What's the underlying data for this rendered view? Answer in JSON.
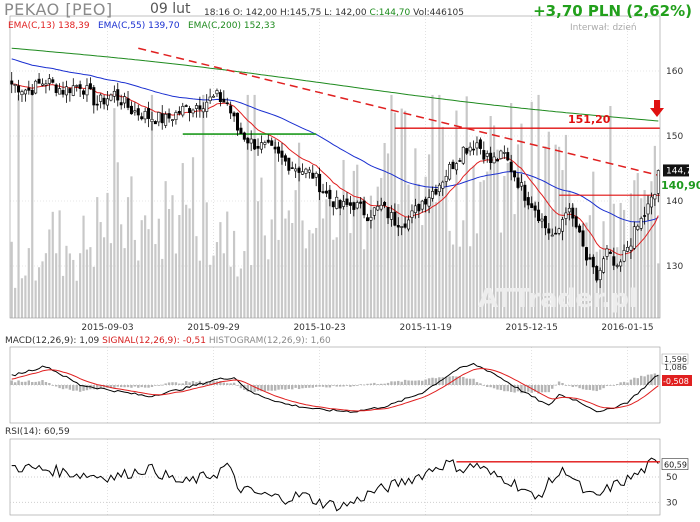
{
  "header": {
    "symbol": "PEKAO [PEO]",
    "date": "09 lut",
    "time": "18:16",
    "open": "O: 142,00",
    "high": "H:145,75",
    "low": "L: 142,00",
    "close": "C:144,70",
    "volume": "Vol:446105",
    "change": "+3,70 PLN (2,62%)",
    "interval": "Interwał: dzień"
  },
  "colors": {
    "ema13": "#e02020",
    "ema55": "#1a2fd0",
    "ema200": "#1e8a1e",
    "hline_red": "#e01010",
    "hline_green": "#1e9a1e",
    "trend": "#e02020",
    "up": "#ffffff",
    "down": "#000000",
    "volume": "#c8c8c8",
    "macd": "#000000",
    "signal": "#e02020",
    "histogram": "#b4b4b4",
    "positive_change": "#22a01c"
  },
  "chart_data": [
    {
      "type": "candlestick",
      "ylim": [
        122,
        166
      ],
      "y_ticks": [
        130,
        140,
        150,
        160
      ],
      "x_ticks": [
        "2015-09-03",
        "2015-09-29",
        "2015-10-23",
        "2015-11-19",
        "2015-12-15",
        "2016-01-15"
      ],
      "grid": true,
      "indicators": [
        {
          "name": "EMA(C,13)",
          "value": "138,39"
        },
        {
          "name": "EMA(C,55)",
          "value": "139,70"
        },
        {
          "name": "EMA(C,200)",
          "value": "152,33"
        }
      ],
      "horizontal_lines": [
        {
          "value": 151.2,
          "label": "151,20"
        },
        {
          "value": 140.9,
          "label": "140,90"
        }
      ],
      "last_price": "144,7",
      "support_line_value": 150.3,
      "trendline_value_range": [
        163.5,
        143.9
      ],
      "close_anchors": [
        [
          0,
          158
        ],
        [
          5,
          157
        ],
        [
          10,
          158.5
        ],
        [
          15,
          157
        ],
        [
          20,
          158
        ],
        [
          25,
          155
        ],
        [
          30,
          156.5
        ],
        [
          35,
          154
        ],
        [
          40,
          153
        ],
        [
          45,
          152.5
        ],
        [
          50,
          154
        ],
        [
          55,
          155
        ],
        [
          60,
          156
        ],
        [
          63,
          155
        ],
        [
          66,
          151
        ],
        [
          70,
          149
        ],
        [
          75,
          148
        ],
        [
          80,
          146
        ],
        [
          84,
          145
        ],
        [
          88,
          144
        ],
        [
          92,
          141
        ],
        [
          96,
          139
        ],
        [
          100,
          139.5
        ],
        [
          104,
          138
        ],
        [
          108,
          139
        ],
        [
          112,
          137
        ],
        [
          116,
          137
        ],
        [
          120,
          140
        ],
        [
          124,
          142
        ],
        [
          128,
          145
        ],
        [
          132,
          148
        ],
        [
          136,
          149
        ],
        [
          140,
          146
        ],
        [
          144,
          147
        ],
        [
          148,
          143
        ],
        [
          150,
          141
        ],
        [
          153,
          139
        ],
        [
          156,
          136
        ],
        [
          159,
          134
        ],
        [
          162,
          139
        ],
        [
          165,
          136
        ],
        [
          168,
          131
        ],
        [
          171,
          128
        ],
        [
          174,
          132
        ],
        [
          177,
          129
        ],
        [
          180,
          133
        ],
        [
          183,
          136
        ],
        [
          186,
          139
        ],
        [
          188,
          141
        ],
        [
          189,
          144.7
        ]
      ],
      "volume_anchors": [
        [
          0,
          0.2
        ],
        [
          10,
          0.3
        ],
        [
          20,
          0.25
        ],
        [
          30,
          0.4
        ],
        [
          40,
          0.3
        ],
        [
          50,
          0.45
        ],
        [
          60,
          0.35
        ],
        [
          70,
          0.3
        ],
        [
          80,
          0.5
        ],
        [
          90,
          0.35
        ],
        [
          100,
          0.45
        ],
        [
          110,
          0.5
        ],
        [
          120,
          0.6
        ],
        [
          130,
          0.55
        ],
        [
          140,
          0.5
        ],
        [
          150,
          0.55
        ],
        [
          160,
          0.5
        ],
        [
          170,
          0.45
        ],
        [
          180,
          0.4
        ],
        [
          189,
          0.35
        ]
      ]
    },
    {
      "type": "line",
      "title": "MACD(12,26,9): 1,09",
      "series": [
        {
          "name": "MACD(12,26,9)",
          "value": "1,09"
        },
        {
          "name": "SIGNAL(12,26,9)",
          "value": "-0,51"
        },
        {
          "name": "HISTOGRAM(12,26,9)",
          "value": "1,60"
        }
      ],
      "ylim": [
        -4,
        4
      ],
      "right_labels": [
        "1,596",
        "1,086",
        "-0,508"
      ],
      "macd_anchors": [
        [
          0,
          1.0
        ],
        [
          10,
          2.0
        ],
        [
          20,
          0.0
        ],
        [
          30,
          -0.6
        ],
        [
          40,
          -1.2
        ],
        [
          50,
          -0.4
        ],
        [
          60,
          0.6
        ],
        [
          65,
          0.8
        ],
        [
          70,
          -0.8
        ],
        [
          80,
          -2.0
        ],
        [
          90,
          -2.6
        ],
        [
          100,
          -2.8
        ],
        [
          110,
          -2.2
        ],
        [
          120,
          -0.8
        ],
        [
          130,
          1.6
        ],
        [
          135,
          2.2
        ],
        [
          140,
          1.4
        ],
        [
          150,
          -0.8
        ],
        [
          157,
          -2.2
        ],
        [
          160,
          -1.0
        ],
        [
          165,
          -1.6
        ],
        [
          172,
          -2.9
        ],
        [
          180,
          -1.8
        ],
        [
          189,
          1.09
        ]
      ]
    },
    {
      "type": "line",
      "title": "RSI(14): 60,59",
      "series": [
        {
          "name": "RSI(14)",
          "value": "60,59"
        }
      ],
      "ylim": [
        20,
        80
      ],
      "y_ticks": [
        30,
        50
      ],
      "right_labels": [
        "60,59"
      ],
      "reference_line": {
        "value": 62
      },
      "rsi_anchors": [
        [
          0,
          58
        ],
        [
          10,
          56
        ],
        [
          20,
          52
        ],
        [
          30,
          50
        ],
        [
          40,
          57
        ],
        [
          50,
          45
        ],
        [
          60,
          53
        ],
        [
          63,
          60
        ],
        [
          66,
          42
        ],
        [
          70,
          38
        ],
        [
          75,
          35
        ],
        [
          80,
          33
        ],
        [
          85,
          36
        ],
        [
          90,
          30
        ],
        [
          96,
          27
        ],
        [
          100,
          30
        ],
        [
          105,
          38
        ],
        [
          110,
          42
        ],
        [
          120,
          52
        ],
        [
          124,
          58
        ],
        [
          128,
          61
        ],
        [
          132,
          56
        ],
        [
          136,
          60
        ],
        [
          140,
          52
        ],
        [
          145,
          48
        ],
        [
          150,
          40
        ],
        [
          153,
          32
        ],
        [
          158,
          48
        ],
        [
          162,
          56
        ],
        [
          165,
          46
        ],
        [
          168,
          36
        ],
        [
          171,
          34
        ],
        [
          175,
          42
        ],
        [
          180,
          48
        ],
        [
          184,
          54
        ],
        [
          187,
          61
        ],
        [
          189,
          60.59
        ]
      ]
    }
  ]
}
